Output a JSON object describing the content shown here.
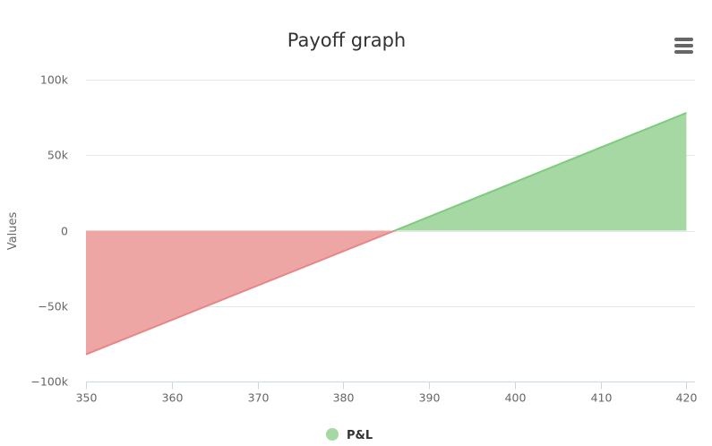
{
  "chart_data": {
    "type": "area",
    "title": "Payoff graph",
    "xlabel": "",
    "ylabel": "Values",
    "xlim": [
      350,
      421
    ],
    "ylim": [
      -100000,
      100000
    ],
    "x_ticks": [
      350,
      360,
      370,
      380,
      390,
      400,
      410,
      420
    ],
    "y_ticks": [
      {
        "value": 100000,
        "label": "100k"
      },
      {
        "value": 50000,
        "label": "50k"
      },
      {
        "value": 0,
        "label": "0"
      },
      {
        "value": -50000,
        "label": "−50k"
      },
      {
        "value": -100000,
        "label": "−100k"
      }
    ],
    "grid": true,
    "legend_position": "bottom-center",
    "series": [
      {
        "name": "P&L",
        "x": [
          350,
          386,
          420
        ],
        "values": [
          -82000,
          0,
          78000
        ],
        "positive_color": "#7ecb7e",
        "negative_color": "#e88585",
        "positive_fill": "#a6d8a3",
        "negative_fill": "#eea6a4",
        "legend_color": "#a6d8a3"
      }
    ]
  },
  "menu": {
    "icon": "hamburger-menu-icon"
  }
}
